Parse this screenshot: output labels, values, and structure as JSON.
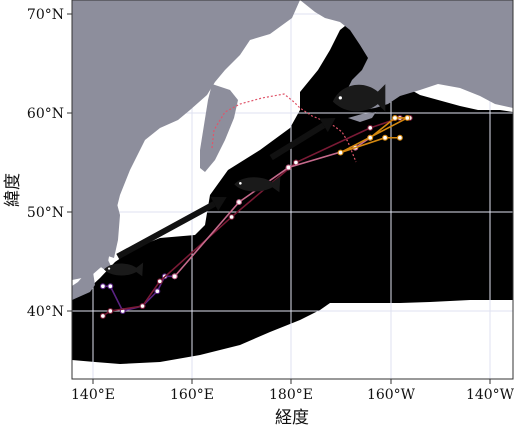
{
  "axes": {
    "xlabel": "経度",
    "ylabel": "緯度",
    "x_ticks": [
      "140°E",
      "160°E",
      "180°E",
      "160°W",
      "140°W"
    ],
    "y_ticks": [
      "40°N",
      "50°N",
      "60°N",
      "70°N"
    ]
  },
  "colors": {
    "ocean": "#ffffff",
    "land": "#8d8e9c",
    "habitat": "#e9edc9",
    "route_a": "#5b2384",
    "route_b": "#7a1a35",
    "route_c": "#c66a8c",
    "route_d": "#d4880f",
    "boundary": "#e0556a",
    "arrow": "#111111",
    "fish": "#1a1a1a"
  },
  "legend": "none",
  "icons": [
    "salmon-juvenile-icon",
    "salmon-icon",
    "salmon-adult-icon"
  ],
  "map_data": {
    "type": "migration-map",
    "lon_range": [
      136,
      221
    ],
    "lat_range": [
      33,
      71
    ],
    "routes": [
      {
        "name": "",
        "color": "route_a",
        "points": [
          [
            142,
            42.5
          ],
          [
            143.5,
            42.5
          ],
          [
            146,
            40
          ],
          [
            150,
            40.5
          ],
          [
            153,
            42
          ],
          [
            154.5,
            43.5
          ],
          [
            156.5,
            43.5
          ]
        ]
      },
      {
        "name": "",
        "color": "route_b",
        "points": [
          [
            142,
            39.5
          ],
          [
            143.5,
            40
          ],
          [
            150,
            40.5
          ],
          [
            153.5,
            43
          ],
          [
            168,
            49.5
          ],
          [
            181,
            55
          ],
          [
            196,
            58.5
          ],
          [
            202,
            59.5
          ],
          [
            204,
            59.5
          ]
        ]
      },
      {
        "name": "",
        "color": "route_c",
        "points": [
          [
            156.5,
            43.5
          ],
          [
            169.5,
            51
          ],
          [
            179.5,
            54.5
          ],
          [
            193,
            56.5
          ],
          [
            196,
            57.5
          ]
        ]
      },
      {
        "name": "",
        "color": "route_d",
        "points": [
          [
            196,
            57.5
          ],
          [
            201,
            59.5
          ],
          [
            203.5,
            59.5
          ],
          [
            190,
            56
          ],
          [
            199,
            57.5
          ],
          [
            202,
            57.5
          ]
        ]
      }
    ],
    "arrows": [
      {
        "from": [
          145,
          45.5
        ],
        "to": [
          167,
          51.5
        ]
      },
      {
        "from": [
          176,
          55.5
        ],
        "to": [
          189,
          59.5
        ]
      }
    ],
    "fish": [
      {
        "icon": "salmon-juvenile-icon",
        "at": [
          146,
          44.2
        ]
      },
      {
        "icon": "salmon-icon",
        "at": [
          173,
          52.8
        ]
      },
      {
        "icon": "salmon-adult-icon",
        "at": [
          193.5,
          61.4
        ]
      }
    ]
  }
}
